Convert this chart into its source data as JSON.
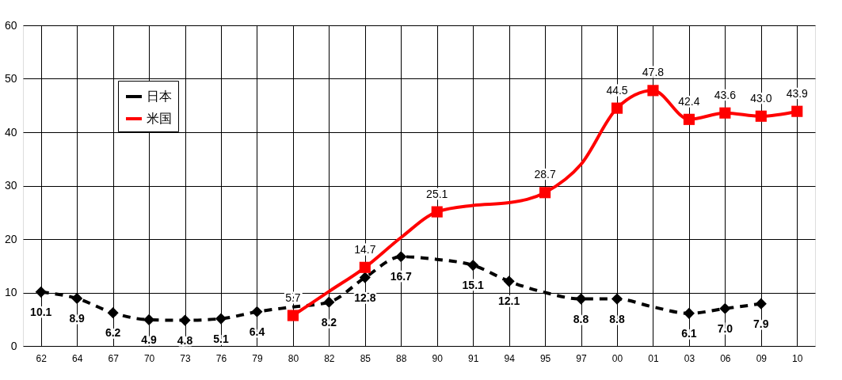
{
  "chart_data": {
    "type": "line",
    "categories": [
      "62",
      "64",
      "67",
      "70",
      "73",
      "76",
      "79",
      "80",
      "82",
      "85",
      "88",
      "90",
      "91",
      "94",
      "95",
      "97",
      "00",
      "01",
      "03",
      "06",
      "09",
      "10"
    ],
    "series": [
      {
        "name": "日本",
        "color": "#000000",
        "line_style": "dashed",
        "marker": "diamond",
        "values": [
          10.1,
          8.9,
          6.2,
          4.9,
          4.8,
          5.1,
          6.4,
          7.3,
          8.2,
          12.8,
          16.7,
          16.2,
          15.1,
          12.1,
          10.0,
          8.8,
          8.8,
          7.3,
          6.1,
          7.0,
          7.9,
          null
        ],
        "value_labels": [
          "10.1",
          "8.9",
          "6.2",
          "4.9",
          "4.8",
          "5.1",
          "6.4",
          null,
          "8.2",
          "12.8",
          "16.7",
          null,
          "15.1",
          "12.1",
          null,
          "8.8",
          "8.8",
          null,
          "6.1",
          "7.0",
          "7.9",
          null
        ]
      },
      {
        "name": "米国",
        "color": "#ff0000",
        "line_style": "solid",
        "marker": "square",
        "values": [
          null,
          null,
          null,
          null,
          null,
          null,
          null,
          5.7,
          10.2,
          14.7,
          20.3,
          25.1,
          26.3,
          26.8,
          28.7,
          34.0,
          44.5,
          47.8,
          42.4,
          43.6,
          43.0,
          43.9
        ],
        "value_labels": [
          null,
          null,
          null,
          null,
          null,
          null,
          null,
          "5.7",
          null,
          "14.7",
          null,
          "25.1",
          null,
          null,
          "28.7",
          null,
          "44.5",
          "47.8",
          "42.4",
          "43.6",
          "43.0",
          "43.9"
        ]
      }
    ],
    "ylim": [
      0,
      60
    ],
    "yticks": [
      0,
      10,
      20,
      30,
      40,
      50,
      60
    ],
    "grid": true,
    "legend": "top left"
  }
}
